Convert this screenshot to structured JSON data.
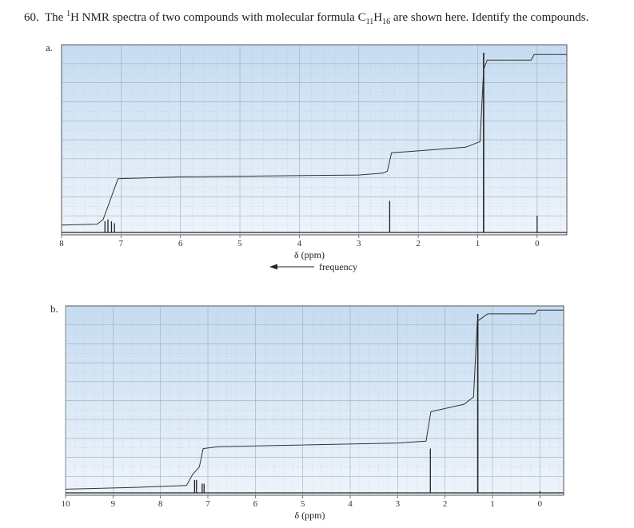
{
  "question": {
    "number": "60.",
    "pre": "The",
    "sup": "1",
    "mid": "H NMR spectra of two compounds with molecular formula C",
    "sub1": "11",
    "h": "H",
    "sub2": "16",
    "post": "are shown here. Identify the compounds."
  },
  "colors": {
    "panel_top": "#c6dcf1",
    "panel_bottom": "#eef4fb",
    "grid": "#9aa8b6",
    "trace": "#222222"
  },
  "chart_data": [
    {
      "type": "line",
      "panel_label": "a.",
      "xlabel": "δ (ppm)",
      "arrow_label": "frequency",
      "xlim": [
        8,
        -0.5
      ],
      "x_ticks": [
        "8",
        "7",
        "6",
        "5",
        "4",
        "3",
        "2",
        "1",
        "0"
      ],
      "x_tick_values": [
        8,
        7,
        6,
        5,
        4,
        3,
        2,
        1,
        0
      ],
      "peaks": [
        {
          "x": 7.27,
          "height": 0.06
        },
        {
          "x": 7.22,
          "height": 0.07
        },
        {
          "x": 7.16,
          "height": 0.06
        },
        {
          "x": 7.11,
          "height": 0.05
        },
        {
          "x": 2.48,
          "height": 0.17
        },
        {
          "x": 0.9,
          "height": 0.97
        },
        {
          "x": 0.0,
          "height": 0.09
        }
      ],
      "integration": [
        [
          8.0,
          0.04
        ],
        [
          7.4,
          0.045
        ],
        [
          7.3,
          0.07
        ],
        [
          7.05,
          0.29
        ],
        [
          6.0,
          0.3
        ],
        [
          3.0,
          0.31
        ],
        [
          2.6,
          0.32
        ],
        [
          2.52,
          0.33
        ],
        [
          2.45,
          0.43
        ],
        [
          2.0,
          0.44
        ],
        [
          1.2,
          0.46
        ],
        [
          0.96,
          0.49
        ],
        [
          0.9,
          0.88
        ],
        [
          0.84,
          0.93
        ],
        [
          0.1,
          0.93
        ],
        [
          0.05,
          0.96
        ],
        [
          -0.5,
          0.96
        ]
      ]
    },
    {
      "type": "line",
      "panel_label": "b.",
      "xlabel": "δ (ppm)",
      "xlim": [
        10,
        -0.5
      ],
      "x_ticks": [
        "10",
        "9",
        "8",
        "7",
        "6",
        "5",
        "4",
        "3",
        "2",
        "1",
        "0"
      ],
      "x_tick_values": [
        10,
        9,
        8,
        7,
        6,
        5,
        4,
        3,
        2,
        1,
        0
      ],
      "peaks": [
        {
          "x": 7.28,
          "height": 0.07
        },
        {
          "x": 7.24,
          "height": 0.07
        },
        {
          "x": 7.12,
          "height": 0.05
        },
        {
          "x": 7.08,
          "height": 0.05
        },
        {
          "x": 2.31,
          "height": 0.24
        },
        {
          "x": 1.31,
          "height": 0.97
        },
        {
          "x": 0.0,
          "height": 0.01
        }
      ],
      "integration": [
        [
          10.0,
          0.02
        ],
        [
          8.5,
          0.03
        ],
        [
          7.45,
          0.04
        ],
        [
          7.32,
          0.1
        ],
        [
          7.18,
          0.14
        ],
        [
          7.1,
          0.24
        ],
        [
          6.8,
          0.25
        ],
        [
          3.0,
          0.27
        ],
        [
          2.4,
          0.28
        ],
        [
          2.3,
          0.44
        ],
        [
          1.6,
          0.48
        ],
        [
          1.4,
          0.52
        ],
        [
          1.32,
          0.93
        ],
        [
          1.1,
          0.97
        ],
        [
          0.1,
          0.97
        ],
        [
          0.05,
          0.99
        ],
        [
          -0.5,
          0.99
        ]
      ]
    }
  ]
}
